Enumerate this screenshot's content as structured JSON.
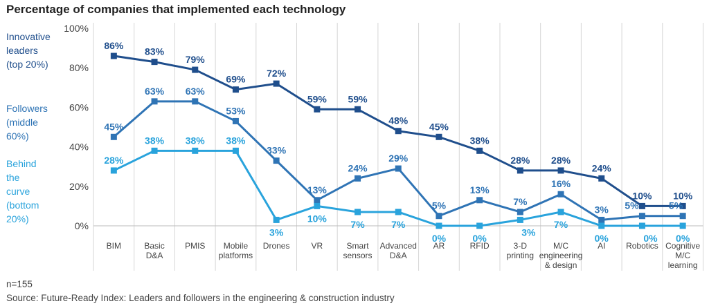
{
  "chart_data": {
    "type": "line",
    "title": "Percentage of companies that implemented each technology",
    "ylim": [
      0,
      100
    ],
    "yticks": [
      "0%",
      "20%",
      "40%",
      "60%",
      "80%",
      "100%"
    ],
    "ytick_values": [
      0,
      20,
      40,
      60,
      80,
      100
    ],
    "grid": "vertical category separators",
    "categories": [
      [
        "BIM"
      ],
      [
        "Basic",
        "D&A"
      ],
      [
        "PMIS"
      ],
      [
        "Mobile",
        "platforms"
      ],
      [
        "Drones"
      ],
      [
        "VR"
      ],
      [
        "Smart",
        "sensors"
      ],
      [
        "Advanced",
        "D&A"
      ],
      [
        "AR"
      ],
      [
        "RFID"
      ],
      [
        "3-D",
        "printing"
      ],
      [
        "M/C",
        "engineering",
        "& design"
      ],
      [
        "AI"
      ],
      [
        "Robotics"
      ],
      [
        "Cognitive",
        "M/C",
        "learning"
      ]
    ],
    "series": [
      {
        "name": [
          "Innovative",
          "leaders",
          "(top 20%)"
        ],
        "color": "#1f4e8c",
        "values": [
          86,
          83,
          79,
          69,
          72,
          59,
          59,
          48,
          45,
          38,
          28,
          28,
          24,
          10,
          10
        ],
        "labels": [
          "86%",
          "83%",
          "79%",
          "69%",
          "72%",
          "59%",
          "59%",
          "48%",
          "45%",
          "38%",
          "28%",
          "28%",
          "24%",
          "10%",
          "10%"
        ]
      },
      {
        "name": [
          "Followers",
          "(middle",
          "60%)"
        ],
        "color": "#2f74b5",
        "values": [
          45,
          63,
          63,
          53,
          33,
          13,
          24,
          29,
          5,
          13,
          7,
          16,
          3,
          5,
          5
        ],
        "labels": [
          "45%",
          "63%",
          "63%",
          "53%",
          "33%",
          "13%",
          "24%",
          "29%",
          "5%",
          "13%",
          "7%",
          "16%",
          "3%",
          "5%",
          "5%"
        ]
      },
      {
        "name": [
          "Behind",
          "the",
          "curve",
          "(bottom",
          "20%)"
        ],
        "color": "#29a3dc",
        "values": [
          28,
          38,
          38,
          38,
          3,
          10,
          7,
          7,
          0,
          0,
          3,
          7,
          0,
          0,
          0
        ],
        "labels": [
          "28%",
          "38%",
          "38%",
          "38%",
          "3%",
          "10%",
          "7%",
          "7%",
          "0%",
          "0%",
          "3%",
          "7%",
          "0%",
          "0%",
          "0%"
        ]
      }
    ]
  },
  "footer": {
    "n": "n=155",
    "source": "Source: Future-Ready Index: Leaders and followers in the engineering & construction industry"
  }
}
